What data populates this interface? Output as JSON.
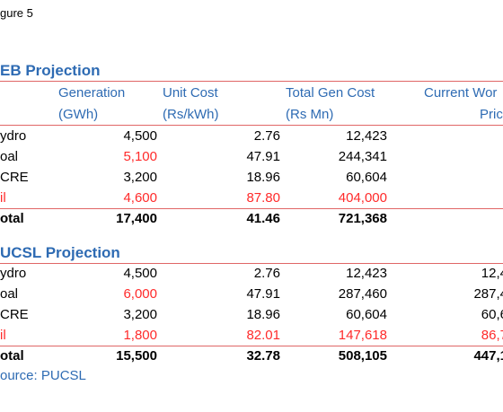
{
  "figure_label": "gure 5",
  "ceb": {
    "title": "EB Projection",
    "headers": {
      "gen1": "Generation",
      "gen2": "(GWh)",
      "unit1": "Unit Cost",
      "unit2": "(Rs/kWh)",
      "total1": "Total Gen Cost",
      "total2": "(Rs Mn)",
      "current1": "Current Wor",
      "current2": "Pric"
    },
    "rows": [
      {
        "label": "ydro",
        "gen": "4,500",
        "unit": "2.76",
        "total": "12,423",
        "current": ""
      },
      {
        "label": "oal",
        "gen": "5,100",
        "unit": "47.91",
        "total": "244,341",
        "current": ""
      },
      {
        "label": "CRE",
        "gen": "3,200",
        "unit": "18.96",
        "total": "60,604",
        "current": ""
      },
      {
        "label": "il",
        "gen": "4,600",
        "unit": "87.80",
        "total": "404,000",
        "current": ""
      },
      {
        "label": "otal",
        "gen": "17,400",
        "unit": "41.46",
        "total": "721,368",
        "current": ""
      }
    ]
  },
  "pucsl": {
    "title": "UCSL Projection",
    "rows": [
      {
        "label": "ydro",
        "gen": "4,500",
        "unit": "2.76",
        "total": "12,423",
        "current": "12,4"
      },
      {
        "label": "oal",
        "gen": "6,000",
        "unit": "47.91",
        "total": "287,460",
        "current": "287,4"
      },
      {
        "label": "CRE",
        "gen": "3,200",
        "unit": "18.96",
        "total": "60,604",
        "current": "60,6"
      },
      {
        "label": "il",
        "gen": "1,800",
        "unit": "82.01",
        "total": "147,618",
        "current": "86,7"
      },
      {
        "label": "otal",
        "gen": "15,500",
        "unit": "32.78",
        "total": "508,105",
        "current": "447,1"
      }
    ]
  },
  "source": "ource: PUCSL",
  "colors": {
    "accent": "#2e6bb3",
    "highlight": "#ff2a2a",
    "rule": "#e06666"
  }
}
